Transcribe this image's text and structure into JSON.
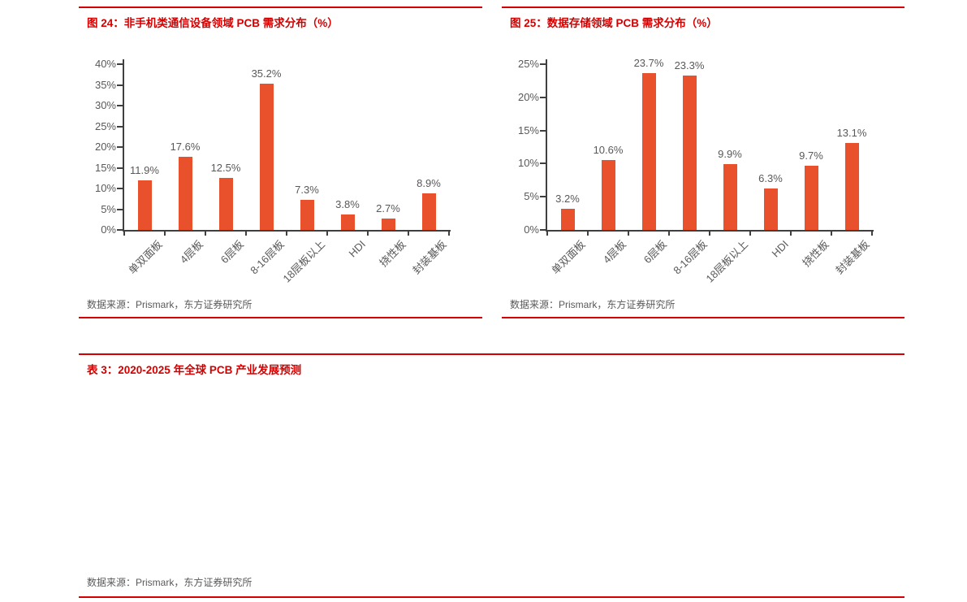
{
  "page": {
    "background": "#ffffff",
    "accent_red": "#d40000",
    "text_gray": "#595959",
    "axis_color": "#3f3f3f"
  },
  "figures": [
    {
      "title": "图 24：非手机类通信设备领域 PCB 需求分布（%）",
      "source": "数据来源：Prismark，东方证券研究所"
    },
    {
      "title": "图 25：数据存储领域 PCB 需求分布（%）",
      "source": "数据来源：Prismark，东方证券研究所"
    }
  ],
  "table_section": {
    "title": "表 3：2020-2025 年全球 PCB 产业发展预测",
    "source": "数据来源：Prismark，东方证券研究所"
  },
  "chart_data": [
    {
      "type": "bar",
      "title": "图 24：非手机类通信设备领域 PCB 需求分布（%）",
      "categories": [
        "单双面板",
        "4层板",
        "6层板",
        "8-16层板",
        "18层板以上",
        "HDI",
        "挠性板",
        "封装基板"
      ],
      "values": [
        11.9,
        17.6,
        12.5,
        35.2,
        7.3,
        3.8,
        2.7,
        8.9
      ],
      "value_labels": [
        "11.9%",
        "17.6%",
        "12.5%",
        "35.2%",
        "7.3%",
        "3.8%",
        "2.7%",
        "8.9%"
      ],
      "xlabel": "",
      "ylabel": "",
      "ylim": [
        0,
        40
      ],
      "ytick_step": 5,
      "yticklabels": [
        "0%",
        "5%",
        "10%",
        "15%",
        "20%",
        "25%",
        "30%",
        "35%",
        "40%"
      ],
      "grid": false,
      "legend": null,
      "bar_color": "#e8512b"
    },
    {
      "type": "bar",
      "title": "图 25：数据存储领域 PCB 需求分布（%）",
      "categories": [
        "单双面板",
        "4层板",
        "6层板",
        "8-16层板",
        "18层板以上",
        "HDI",
        "挠性板",
        "封装基板"
      ],
      "values": [
        3.2,
        10.6,
        23.7,
        23.3,
        9.9,
        6.3,
        9.7,
        13.1
      ],
      "value_labels": [
        "3.2%",
        "10.6%",
        "23.7%",
        "23.3%",
        "9.9%",
        "6.3%",
        "9.7%",
        "13.1%"
      ],
      "xlabel": "",
      "ylabel": "",
      "ylim": [
        0,
        25
      ],
      "ytick_step": 5,
      "yticklabels": [
        "0%",
        "5%",
        "10%",
        "15%",
        "20%",
        "25%"
      ],
      "grid": false,
      "legend": null,
      "bar_color": "#e8512b"
    }
  ]
}
